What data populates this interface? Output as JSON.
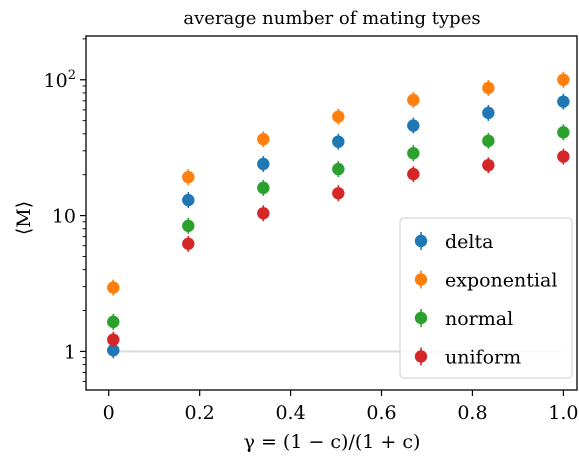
{
  "chart_data": {
    "type": "scatter",
    "title": "average number of mating types",
    "xlabel": "γ = (1 − c)/(1 + c)",
    "ylabel": "⟨M⟩",
    "xlim": [
      -0.05,
      1.03
    ],
    "ylim": [
      0.52,
      210
    ],
    "yscale": "log",
    "xticks": [
      0,
      0.2,
      0.4,
      0.6,
      0.8,
      1.0
    ],
    "xtick_labels": [
      "0",
      "0.2",
      "0.4",
      "0.6",
      "0.8",
      "1.0"
    ],
    "yticks": [
      1,
      10,
      100
    ],
    "ytick_labels": [
      "1",
      "10",
      "10²"
    ],
    "x": [
      0.01,
      0.175,
      0.34,
      0.505,
      0.67,
      0.835,
      1.0
    ],
    "reference_line": {
      "y": 1,
      "color": "#dddddd"
    },
    "legend": {
      "placement": "lower-right"
    },
    "series": [
      {
        "name": "delta",
        "color": "#1f77b4",
        "values": [
          1.02,
          13.0,
          24.0,
          35.0,
          46.0,
          57.0,
          69.0
        ]
      },
      {
        "name": "exponential",
        "color": "#ff7f0e",
        "values": [
          2.95,
          19.2,
          36.5,
          53.5,
          71.0,
          87.0,
          100.0
        ]
      },
      {
        "name": "normal",
        "color": "#2ca02c",
        "values": [
          1.65,
          8.4,
          16.0,
          22.0,
          28.8,
          35.5,
          41.0
        ]
      },
      {
        "name": "uniform",
        "color": "#d62728",
        "values": [
          1.22,
          6.2,
          10.4,
          14.6,
          20.2,
          23.5,
          27.2
        ]
      }
    ]
  }
}
